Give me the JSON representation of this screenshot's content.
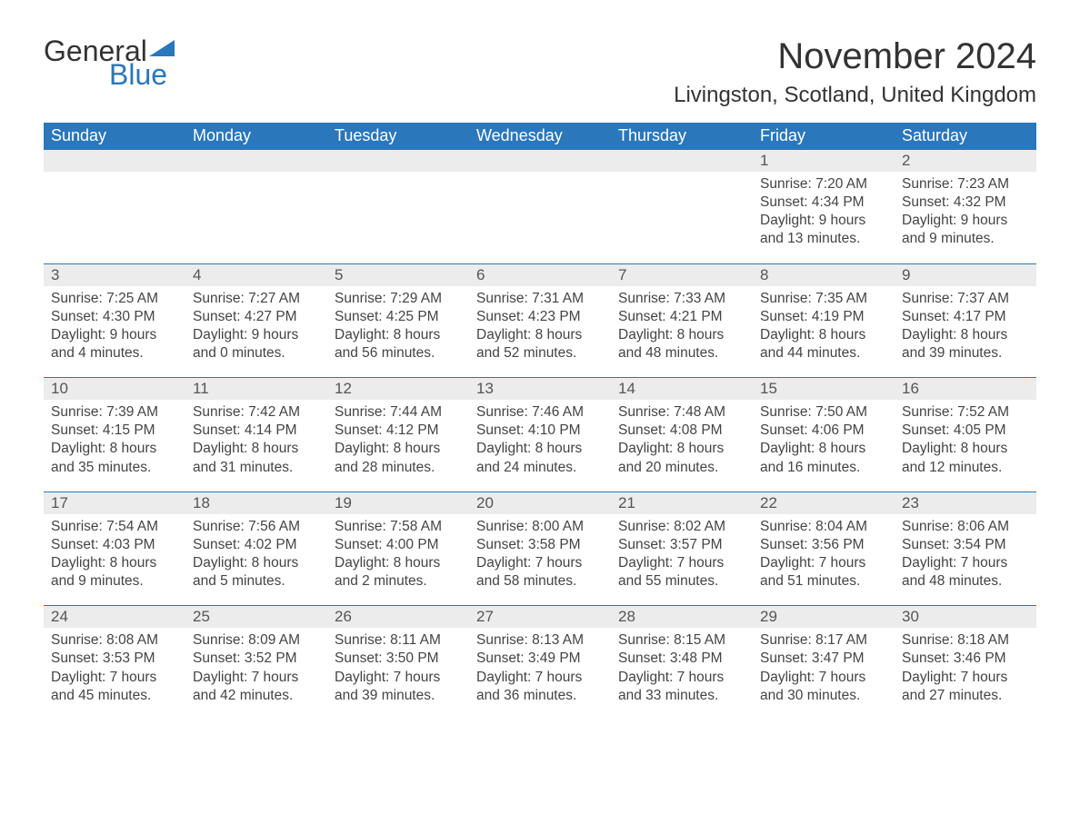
{
  "brand": {
    "general": "General",
    "blue": "Blue"
  },
  "title": "November 2024",
  "location": "Livingston, Scotland, United Kingdom",
  "colors": {
    "header_bg": "#2a77bb",
    "header_text": "#ffffff",
    "daynum_bg": "#ececec",
    "daynum_border": "#2a77bb",
    "body_bg": "#ffffff",
    "text": "#333333",
    "logo_blue": "#2a77bb"
  },
  "typography": {
    "title_fontsize": 40,
    "location_fontsize": 24,
    "dayheader_fontsize": 18,
    "daynum_fontsize": 17,
    "body_fontsize": 15.5,
    "logo_fontsize": 32
  },
  "layout": {
    "type": "table",
    "columns": 7,
    "weeks": 5
  },
  "day_headers": [
    "Sunday",
    "Monday",
    "Tuesday",
    "Wednesday",
    "Thursday",
    "Friday",
    "Saturday"
  ],
  "weeks": [
    [
      null,
      null,
      null,
      null,
      null,
      {
        "n": "1",
        "sunrise": "Sunrise: 7:20 AM",
        "sunset": "Sunset: 4:34 PM",
        "daylight": "Daylight: 9 hours and 13 minutes."
      },
      {
        "n": "2",
        "sunrise": "Sunrise: 7:23 AM",
        "sunset": "Sunset: 4:32 PM",
        "daylight": "Daylight: 9 hours and 9 minutes."
      }
    ],
    [
      {
        "n": "3",
        "sunrise": "Sunrise: 7:25 AM",
        "sunset": "Sunset: 4:30 PM",
        "daylight": "Daylight: 9 hours and 4 minutes."
      },
      {
        "n": "4",
        "sunrise": "Sunrise: 7:27 AM",
        "sunset": "Sunset: 4:27 PM",
        "daylight": "Daylight: 9 hours and 0 minutes."
      },
      {
        "n": "5",
        "sunrise": "Sunrise: 7:29 AM",
        "sunset": "Sunset: 4:25 PM",
        "daylight": "Daylight: 8 hours and 56 minutes."
      },
      {
        "n": "6",
        "sunrise": "Sunrise: 7:31 AM",
        "sunset": "Sunset: 4:23 PM",
        "daylight": "Daylight: 8 hours and 52 minutes."
      },
      {
        "n": "7",
        "sunrise": "Sunrise: 7:33 AM",
        "sunset": "Sunset: 4:21 PM",
        "daylight": "Daylight: 8 hours and 48 minutes."
      },
      {
        "n": "8",
        "sunrise": "Sunrise: 7:35 AM",
        "sunset": "Sunset: 4:19 PM",
        "daylight": "Daylight: 8 hours and 44 minutes."
      },
      {
        "n": "9",
        "sunrise": "Sunrise: 7:37 AM",
        "sunset": "Sunset: 4:17 PM",
        "daylight": "Daylight: 8 hours and 39 minutes."
      }
    ],
    [
      {
        "n": "10",
        "sunrise": "Sunrise: 7:39 AM",
        "sunset": "Sunset: 4:15 PM",
        "daylight": "Daylight: 8 hours and 35 minutes."
      },
      {
        "n": "11",
        "sunrise": "Sunrise: 7:42 AM",
        "sunset": "Sunset: 4:14 PM",
        "daylight": "Daylight: 8 hours and 31 minutes."
      },
      {
        "n": "12",
        "sunrise": "Sunrise: 7:44 AM",
        "sunset": "Sunset: 4:12 PM",
        "daylight": "Daylight: 8 hours and 28 minutes."
      },
      {
        "n": "13",
        "sunrise": "Sunrise: 7:46 AM",
        "sunset": "Sunset: 4:10 PM",
        "daylight": "Daylight: 8 hours and 24 minutes."
      },
      {
        "n": "14",
        "sunrise": "Sunrise: 7:48 AM",
        "sunset": "Sunset: 4:08 PM",
        "daylight": "Daylight: 8 hours and 20 minutes."
      },
      {
        "n": "15",
        "sunrise": "Sunrise: 7:50 AM",
        "sunset": "Sunset: 4:06 PM",
        "daylight": "Daylight: 8 hours and 16 minutes."
      },
      {
        "n": "16",
        "sunrise": "Sunrise: 7:52 AM",
        "sunset": "Sunset: 4:05 PM",
        "daylight": "Daylight: 8 hours and 12 minutes."
      }
    ],
    [
      {
        "n": "17",
        "sunrise": "Sunrise: 7:54 AM",
        "sunset": "Sunset: 4:03 PM",
        "daylight": "Daylight: 8 hours and 9 minutes."
      },
      {
        "n": "18",
        "sunrise": "Sunrise: 7:56 AM",
        "sunset": "Sunset: 4:02 PM",
        "daylight": "Daylight: 8 hours and 5 minutes."
      },
      {
        "n": "19",
        "sunrise": "Sunrise: 7:58 AM",
        "sunset": "Sunset: 4:00 PM",
        "daylight": "Daylight: 8 hours and 2 minutes."
      },
      {
        "n": "20",
        "sunrise": "Sunrise: 8:00 AM",
        "sunset": "Sunset: 3:58 PM",
        "daylight": "Daylight: 7 hours and 58 minutes."
      },
      {
        "n": "21",
        "sunrise": "Sunrise: 8:02 AM",
        "sunset": "Sunset: 3:57 PM",
        "daylight": "Daylight: 7 hours and 55 minutes."
      },
      {
        "n": "22",
        "sunrise": "Sunrise: 8:04 AM",
        "sunset": "Sunset: 3:56 PM",
        "daylight": "Daylight: 7 hours and 51 minutes."
      },
      {
        "n": "23",
        "sunrise": "Sunrise: 8:06 AM",
        "sunset": "Sunset: 3:54 PM",
        "daylight": "Daylight: 7 hours and 48 minutes."
      }
    ],
    [
      {
        "n": "24",
        "sunrise": "Sunrise: 8:08 AM",
        "sunset": "Sunset: 3:53 PM",
        "daylight": "Daylight: 7 hours and 45 minutes."
      },
      {
        "n": "25",
        "sunrise": "Sunrise: 8:09 AM",
        "sunset": "Sunset: 3:52 PM",
        "daylight": "Daylight: 7 hours and 42 minutes."
      },
      {
        "n": "26",
        "sunrise": "Sunrise: 8:11 AM",
        "sunset": "Sunset: 3:50 PM",
        "daylight": "Daylight: 7 hours and 39 minutes."
      },
      {
        "n": "27",
        "sunrise": "Sunrise: 8:13 AM",
        "sunset": "Sunset: 3:49 PM",
        "daylight": "Daylight: 7 hours and 36 minutes."
      },
      {
        "n": "28",
        "sunrise": "Sunrise: 8:15 AM",
        "sunset": "Sunset: 3:48 PM",
        "daylight": "Daylight: 7 hours and 33 minutes."
      },
      {
        "n": "29",
        "sunrise": "Sunrise: 8:17 AM",
        "sunset": "Sunset: 3:47 PM",
        "daylight": "Daylight: 7 hours and 30 minutes."
      },
      {
        "n": "30",
        "sunrise": "Sunrise: 8:18 AM",
        "sunset": "Sunset: 3:46 PM",
        "daylight": "Daylight: 7 hours and 27 minutes."
      }
    ]
  ]
}
